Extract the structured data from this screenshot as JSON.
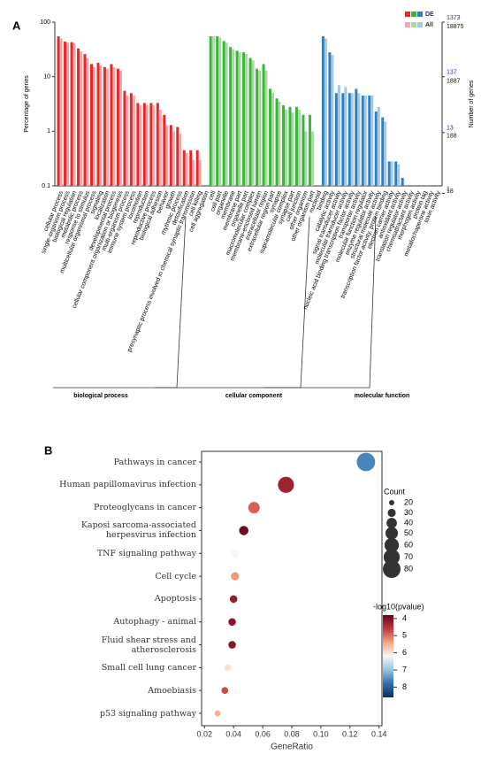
{
  "chart_data": [
    {
      "type": "bar",
      "panel": "A",
      "log": true,
      "ylabel": "Percentage of genes",
      "y2label": "Number of genes",
      "ylim": [
        0.1,
        100
      ],
      "yticks": [
        0.1,
        1,
        10,
        100
      ],
      "y2lim_de": [
        1.373,
        1373
      ],
      "y2ticks_de": [
        1373,
        137,
        13,
        1
      ],
      "y2lim_all": [
        18.875,
        18875
      ],
      "y2ticks_all": [
        18875,
        1887,
        188,
        18
      ],
      "groups": [
        {
          "name": "biological process",
          "categories": [
            "cellular process",
            "single-organism process",
            "biological regulation",
            "metabolic process",
            "response to stimulus",
            "multicellular organismal process",
            "signaling",
            "localization",
            "developmental process",
            "cellular component organization or biogenesis",
            "multi-organism process",
            "immune system process",
            "locomotion",
            "reproduction",
            "reproductive process",
            "biological adhesion",
            "behavior",
            "growth",
            "rhythmic process",
            "detoxification",
            "presynaptic process involved in chemical synaptic transmission",
            "cell killing",
            "cell aggregation"
          ],
          "series": [
            {
              "name": "DE",
              "color": "#e8272b",
              "values": [
                55,
                44,
                43,
                33,
                26,
                17,
                18,
                15,
                17,
                14,
                5.5,
                5,
                3.3,
                3.3,
                3.3,
                3.3,
                2,
                1.3,
                1.2,
                0.45,
                0.45,
                0.45,
                null
              ]
            },
            {
              "name": "All",
              "color": "#f4a9a8",
              "values": [
                50,
                42,
                41,
                29,
                22,
                15,
                16,
                14,
                15,
                13,
                4.5,
                4.5,
                3,
                3,
                3,
                2.5,
                1.3,
                1,
                0.9,
                0.4,
                0.3,
                0.3,
                null
              ]
            }
          ]
        },
        {
          "name": "cellular component",
          "categories": [
            "cell",
            "cell part",
            "organelle",
            "membrane",
            "membrane part",
            "organelle part",
            "macromolecular complex",
            "membrane-enclosed lumen",
            "extracellular region",
            "extracellular region part",
            "synapse",
            "supramolecular complex",
            "synapse part",
            "cell junction",
            "other organism",
            "other organism part",
            "nucleoid"
          ],
          "series": [
            {
              "name": "DE",
              "color": "#38b53a",
              "values": [
                55,
                55,
                45,
                35,
                30,
                28,
                22,
                14,
                17,
                6,
                4,
                3,
                2.8,
                2.8,
                2,
                2,
                null
              ]
            },
            {
              "name": "All",
              "color": "#a9dba0",
              "values": [
                55,
                52,
                42,
                32,
                28,
                26,
                20,
                13,
                13,
                5,
                3.5,
                2.5,
                2.2,
                2.5,
                1,
                1,
                null
              ]
            }
          ]
        },
        {
          "name": "molecular function",
          "categories": [
            "binding",
            "catalytic activity",
            "signal transducer activity",
            "molecular transducer activity",
            "nucleic acid binding transcription factor activity",
            "transporter activity",
            "molecular function regulator",
            "enzyme regulator activity",
            "structural molecule activity",
            "transcription factor activity, protein binding",
            "electron carrier activity",
            "antioxidant activity",
            "translation regulator activity",
            "chemoattractant activity",
            "morphogen activity",
            "protein tag",
            "metallochaperone activity",
            "toxin activity"
          ],
          "series": [
            {
              "name": "DE",
              "color": "#2d7fc0",
              "values": [
                55,
                28,
                5,
                5,
                5,
                6,
                4.5,
                4.5,
                2.3,
                1.8,
                0.28,
                0.28,
                0.14,
                null,
                null,
                null,
                null,
                null
              ]
            },
            {
              "name": "All",
              "color": "#a5c8e4",
              "values": [
                50,
                25,
                7,
                6.5,
                5,
                5,
                4.5,
                4.5,
                2.8,
                1.5,
                0.28,
                0.25,
                null,
                null,
                null,
                null,
                null,
                null
              ]
            }
          ]
        }
      ]
    },
    {
      "type": "dot",
      "panel": "B",
      "xlabel": "GeneRatio",
      "categories": [
        "Pathways in cancer",
        "Human papillomavirus infection",
        "Proteoglycans in cancer",
        "Kaposi sarcoma-associated herpesvirus infection",
        "TNF signaling pathway",
        "Cell cycle",
        "Apoptosis",
        "Autophagy - animal",
        "Fluid shear stress and atherosclerosis",
        "Small cell lung cancer",
        "Amoebiasis",
        "p53 signaling pathway"
      ],
      "x": [
        0.131,
        0.076,
        0.054,
        0.047,
        0.041,
        0.041,
        0.04,
        0.039,
        0.039,
        0.036,
        0.034,
        0.029
      ],
      "size": [
        85,
        70,
        45,
        35,
        30,
        30,
        28,
        28,
        28,
        25,
        25,
        22
      ],
      "color_values": [
        7.6,
        4.3,
        4.9,
        3.9,
        6.2,
        5.3,
        4.2,
        4.1,
        4.1,
        6.0,
        4.7,
        5.5
      ],
      "xlim": [
        0.018,
        0.142
      ],
      "xticks": [
        0.02,
        0.04,
        0.06,
        0.08,
        {
          "value": 0.1,
          "label": "0.10"
        },
        0.12,
        0.14
      ],
      "size_title": "Count",
      "sizeticks": [
        20,
        30,
        40,
        50,
        60,
        70,
        80
      ],
      "color_title": "-log10(pvalue)",
      "colorlim": [
        3.8,
        8.6
      ],
      "colorticks": [
        4,
        5,
        6,
        7,
        8
      ],
      "colormap": [
        "#67001f",
        "#c23a3a",
        "#f4a582",
        "#f7f7f7",
        "#92c5de",
        "#2f6faf",
        "#0b2c5c"
      ]
    }
  ]
}
